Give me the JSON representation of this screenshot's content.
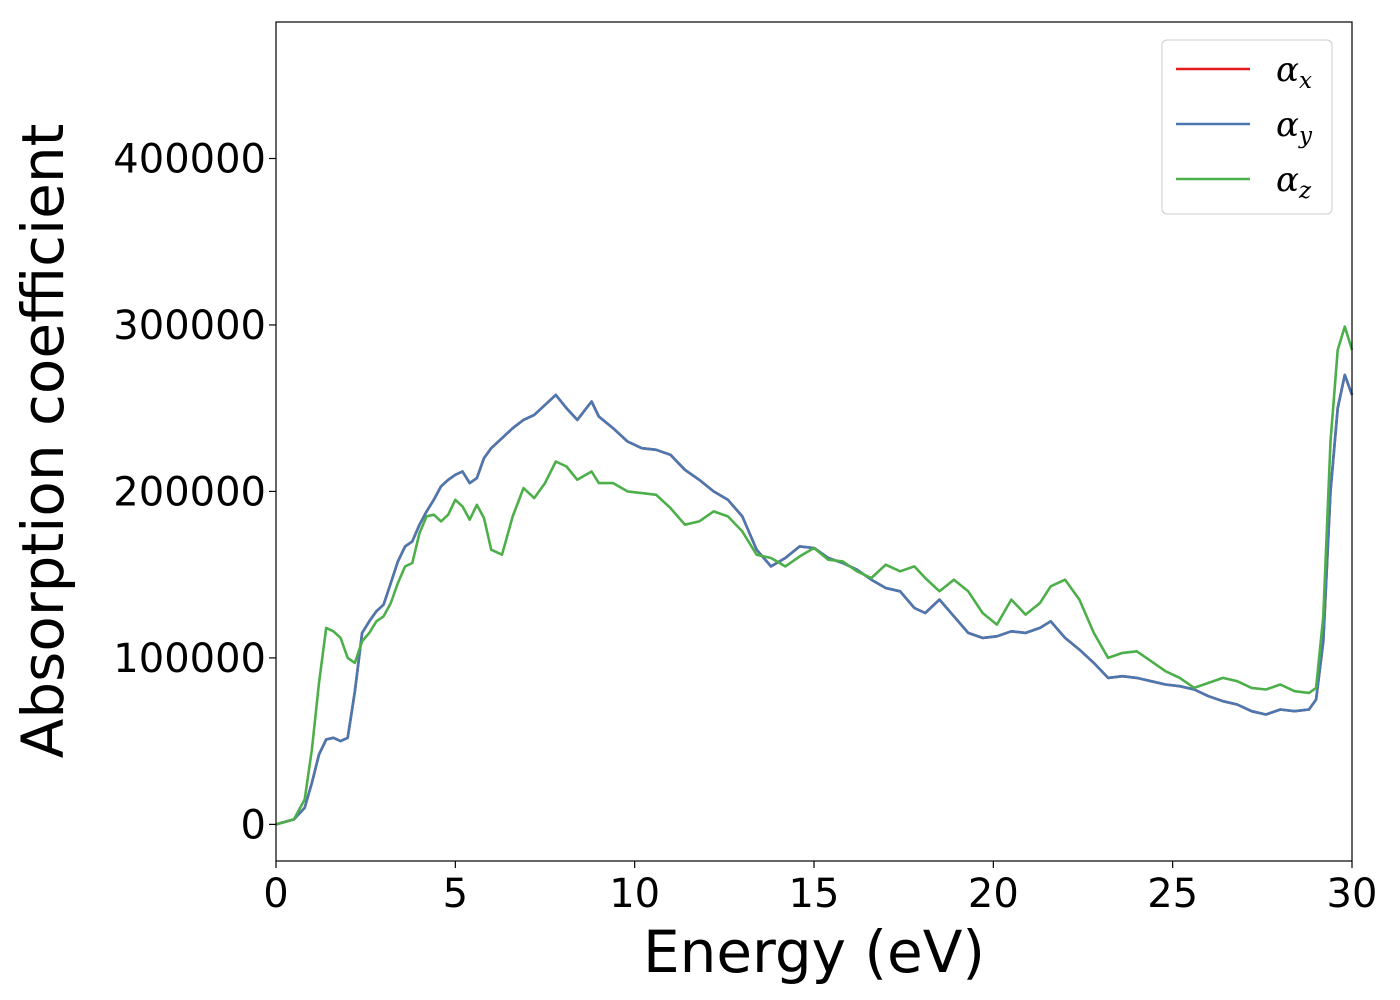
{
  "chart_data": {
    "type": "line",
    "title": "",
    "xlabel": "Energy (eV)",
    "ylabel": "Absorption coefficient",
    "xlim": [
      0,
      30
    ],
    "ylim": [
      -22000,
      482000
    ],
    "xticks": [
      0,
      5,
      10,
      15,
      20,
      25,
      30
    ],
    "xtick_labels": [
      "0",
      "5",
      "10",
      "15",
      "20",
      "25",
      "30"
    ],
    "yticks": [
      0,
      100000,
      200000,
      300000,
      400000
    ],
    "ytick_labels": [
      "0",
      "100000",
      "200000",
      "300000",
      "400000"
    ],
    "grid": false,
    "legend_position": "top-right",
    "series": [
      {
        "name": "αx",
        "symbol": "α",
        "subscript": "x",
        "color": "#e41a1c",
        "x": [
          0,
          0.5,
          0.8,
          1.0,
          1.2,
          1.4,
          1.6,
          1.8,
          2.0,
          2.2,
          2.4,
          2.6,
          2.8,
          3.0,
          3.2,
          3.4,
          3.6,
          3.8,
          4.0,
          4.2,
          4.4,
          4.6,
          4.8,
          5.0,
          5.2,
          5.4,
          5.6,
          5.8,
          6.0,
          6.3,
          6.6,
          6.9,
          7.2,
          7.5,
          7.8,
          8.1,
          8.4,
          8.8,
          9.0,
          9.4,
          9.8,
          10.2,
          10.6,
          11.0,
          11.4,
          11.8,
          12.2,
          12.6,
          13.0,
          13.4,
          13.8,
          14.2,
          14.6,
          15.0,
          15.4,
          15.8,
          16.2,
          16.6,
          17.0,
          17.4,
          17.8,
          18.1,
          18.5,
          18.9,
          19.3,
          19.7,
          20.1,
          20.5,
          20.9,
          21.3,
          21.6,
          22.0,
          22.4,
          22.8,
          23.2,
          23.6,
          24.0,
          24.4,
          24.8,
          25.2,
          25.6,
          26.0,
          26.4,
          26.8,
          27.2,
          27.6,
          28.0,
          28.4,
          28.8,
          29.0,
          29.2,
          29.4,
          29.6,
          29.8,
          30.0
        ],
        "y": [
          0,
          3000,
          10000,
          25000,
          42000,
          51000,
          52000,
          50000,
          52000,
          80000,
          115000,
          122000,
          128000,
          132000,
          145000,
          158000,
          167000,
          170000,
          180000,
          188000,
          195000,
          203000,
          207000,
          210000,
          212000,
          205000,
          208000,
          220000,
          226000,
          232000,
          238000,
          243000,
          246000,
          252000,
          258000,
          250000,
          243000,
          254000,
          245000,
          238000,
          230000,
          226000,
          225000,
          222000,
          213000,
          207000,
          200000,
          195000,
          185000,
          165000,
          155000,
          160000,
          167000,
          166000,
          160000,
          157000,
          153000,
          147000,
          142000,
          140000,
          130000,
          127000,
          135000,
          125000,
          115000,
          112000,
          113000,
          116000,
          115000,
          118000,
          122000,
          112000,
          105000,
          97000,
          88000,
          89000,
          88000,
          86000,
          84000,
          83000,
          81000,
          77000,
          74000,
          72000,
          68000,
          66000,
          69000,
          68000,
          69000,
          75000,
          110000,
          200000,
          250000,
          270000,
          258000
        ]
      },
      {
        "name": "αy",
        "symbol": "α",
        "subscript": "y",
        "color": "#4a78b0",
        "x": [
          0,
          0.5,
          0.8,
          1.0,
          1.2,
          1.4,
          1.6,
          1.8,
          2.0,
          2.2,
          2.4,
          2.6,
          2.8,
          3.0,
          3.2,
          3.4,
          3.6,
          3.8,
          4.0,
          4.2,
          4.4,
          4.6,
          4.8,
          5.0,
          5.2,
          5.4,
          5.6,
          5.8,
          6.0,
          6.3,
          6.6,
          6.9,
          7.2,
          7.5,
          7.8,
          8.1,
          8.4,
          8.8,
          9.0,
          9.4,
          9.8,
          10.2,
          10.6,
          11.0,
          11.4,
          11.8,
          12.2,
          12.6,
          13.0,
          13.4,
          13.8,
          14.2,
          14.6,
          15.0,
          15.4,
          15.8,
          16.2,
          16.6,
          17.0,
          17.4,
          17.8,
          18.1,
          18.5,
          18.9,
          19.3,
          19.7,
          20.1,
          20.5,
          20.9,
          21.3,
          21.6,
          22.0,
          22.4,
          22.8,
          23.2,
          23.6,
          24.0,
          24.4,
          24.8,
          25.2,
          25.6,
          26.0,
          26.4,
          26.8,
          27.2,
          27.6,
          28.0,
          28.4,
          28.8,
          29.0,
          29.2,
          29.4,
          29.6,
          29.8,
          30.0
        ],
        "y": [
          0,
          3000,
          10000,
          25000,
          42000,
          51000,
          52000,
          50000,
          52000,
          80000,
          115000,
          122000,
          128000,
          132000,
          145000,
          158000,
          167000,
          170000,
          180000,
          188000,
          195000,
          203000,
          207000,
          210000,
          212000,
          205000,
          208000,
          220000,
          226000,
          232000,
          238000,
          243000,
          246000,
          252000,
          258000,
          250000,
          243000,
          254000,
          245000,
          238000,
          230000,
          226000,
          225000,
          222000,
          213000,
          207000,
          200000,
          195000,
          185000,
          165000,
          155000,
          160000,
          167000,
          166000,
          160000,
          157000,
          153000,
          147000,
          142000,
          140000,
          130000,
          127000,
          135000,
          125000,
          115000,
          112000,
          113000,
          116000,
          115000,
          118000,
          122000,
          112000,
          105000,
          97000,
          88000,
          89000,
          88000,
          86000,
          84000,
          83000,
          81000,
          77000,
          74000,
          72000,
          68000,
          66000,
          69000,
          68000,
          69000,
          75000,
          110000,
          200000,
          250000,
          270000,
          258000
        ]
      },
      {
        "name": "αz",
        "symbol": "α",
        "subscript": "z",
        "color": "#4daf4a",
        "x": [
          0,
          0.5,
          0.8,
          1.0,
          1.2,
          1.4,
          1.6,
          1.8,
          2.0,
          2.2,
          2.4,
          2.6,
          2.8,
          3.0,
          3.2,
          3.4,
          3.6,
          3.8,
          4.0,
          4.2,
          4.4,
          4.6,
          4.8,
          5.0,
          5.2,
          5.4,
          5.6,
          5.8,
          6.0,
          6.3,
          6.6,
          6.9,
          7.2,
          7.5,
          7.8,
          8.1,
          8.4,
          8.8,
          9.0,
          9.4,
          9.8,
          10.2,
          10.6,
          11.0,
          11.4,
          11.8,
          12.2,
          12.6,
          13.0,
          13.4,
          13.8,
          14.2,
          14.6,
          15.0,
          15.4,
          15.8,
          16.2,
          16.6,
          17.0,
          17.4,
          17.8,
          18.1,
          18.5,
          18.9,
          19.3,
          19.7,
          20.1,
          20.5,
          20.9,
          21.3,
          21.6,
          22.0,
          22.4,
          22.8,
          23.2,
          23.6,
          24.0,
          24.4,
          24.8,
          25.2,
          25.6,
          26.0,
          26.4,
          26.8,
          27.2,
          27.6,
          28.0,
          28.4,
          28.8,
          29.0,
          29.2,
          29.4,
          29.6,
          29.8,
          30.0
        ],
        "y": [
          0,
          3000,
          15000,
          45000,
          85000,
          118000,
          116000,
          112000,
          100000,
          97000,
          110000,
          115000,
          122000,
          125000,
          133000,
          145000,
          155000,
          157000,
          175000,
          185000,
          186000,
          182000,
          186000,
          195000,
          191000,
          183000,
          192000,
          184000,
          165000,
          162000,
          185000,
          202000,
          196000,
          205000,
          218000,
          215000,
          207000,
          212000,
          205000,
          205000,
          200000,
          199000,
          198000,
          190000,
          180000,
          182000,
          188000,
          185000,
          176000,
          162000,
          160000,
          155000,
          161000,
          166000,
          159000,
          158000,
          152000,
          148000,
          156000,
          152000,
          155000,
          148000,
          140000,
          147000,
          140000,
          127000,
          120000,
          135000,
          126000,
          133000,
          143000,
          147000,
          135000,
          115000,
          100000,
          103000,
          104000,
          98000,
          92000,
          88000,
          82000,
          85000,
          88000,
          86000,
          82000,
          81000,
          84000,
          80000,
          79000,
          82000,
          125000,
          230000,
          285000,
          299000,
          285000
        ]
      }
    ]
  }
}
